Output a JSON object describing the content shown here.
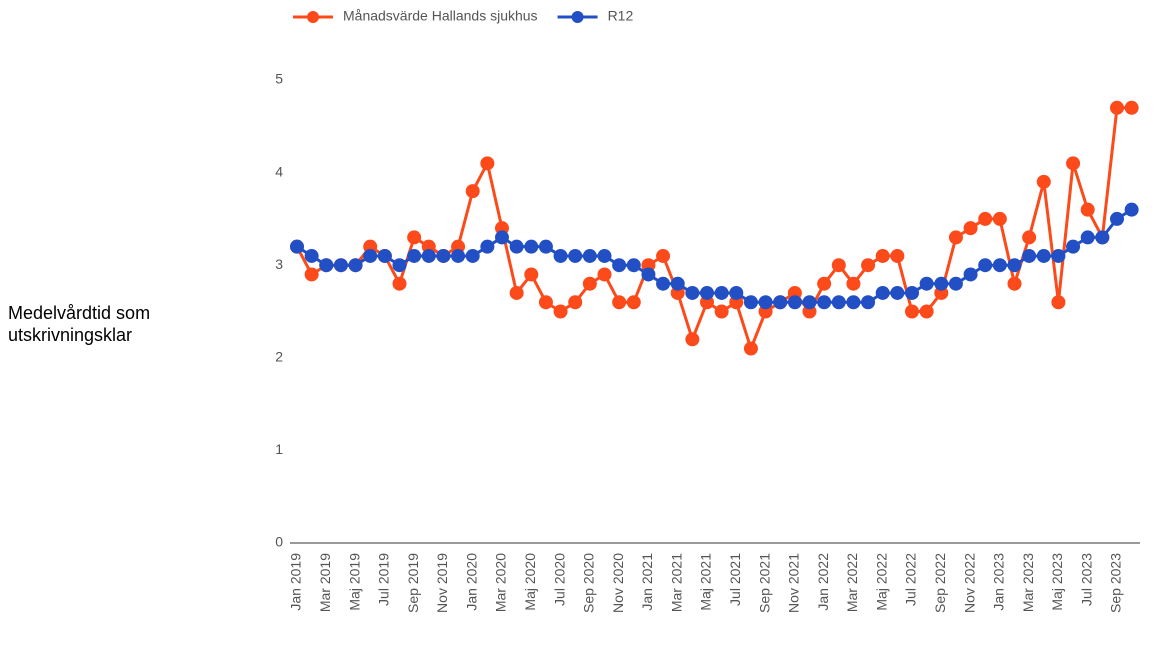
{
  "chart_data": {
    "type": "line",
    "ylabel": "Medelvårdtid som utskrivningsklar",
    "categories": [
      "Jan 2019",
      null,
      "Mar 2019",
      null,
      "Maj 2019",
      null,
      "Jul 2019",
      null,
      "Sep 2019",
      null,
      "Nov 2019",
      null,
      "Jan 2020",
      null,
      "Mar 2020",
      null,
      "Maj 2020",
      null,
      "Jul 2020",
      null,
      "Sep 2020",
      null,
      "Nov 2020",
      null,
      "Jan 2021",
      null,
      "Mar 2021",
      null,
      "Maj 2021",
      null,
      "Jul 2021",
      null,
      "Sep 2021",
      null,
      "Nov 2021",
      null,
      "Jan 2022",
      null,
      "Mar 2022",
      null,
      "Maj 2022",
      null,
      "Jul 2022",
      null,
      "Sep 2022",
      null,
      "Nov 2022",
      null,
      "Jan 2023",
      null,
      "Mar 2023",
      null,
      "Maj 2023",
      null,
      "Jul 2023",
      null,
      "Sep 2023",
      null
    ],
    "series": [
      {
        "name": "Månadsvärde Hallands sjukhus",
        "color": "#fc4a1a",
        "values": [
          3.2,
          2.9,
          3.0,
          3.0,
          3.0,
          3.2,
          3.1,
          2.8,
          3.3,
          3.2,
          3.1,
          3.2,
          3.8,
          4.1,
          3.4,
          2.7,
          2.9,
          2.6,
          2.5,
          2.6,
          2.8,
          2.9,
          2.6,
          2.6,
          3.0,
          3.1,
          2.7,
          2.2,
          2.6,
          2.5,
          2.6,
          2.1,
          2.5,
          2.6,
          2.7,
          2.5,
          2.8,
          3.0,
          2.8,
          3.0,
          3.1,
          3.1,
          2.5,
          2.5,
          2.7,
          3.3,
          3.4,
          3.5,
          3.5,
          2.8,
          3.3,
          3.9,
          2.6,
          4.1,
          3.6,
          3.3,
          4.7,
          4.7
        ]
      },
      {
        "name": "R12",
        "color": "#2250c4",
        "values": [
          3.2,
          3.1,
          3.0,
          3.0,
          3.0,
          3.1,
          3.1,
          3.0,
          3.1,
          3.1,
          3.1,
          3.1,
          3.1,
          3.2,
          3.3,
          3.2,
          3.2,
          3.2,
          3.1,
          3.1,
          3.1,
          3.1,
          3.0,
          3.0,
          2.9,
          2.8,
          2.8,
          2.7,
          2.7,
          2.7,
          2.7,
          2.6,
          2.6,
          2.6,
          2.6,
          2.6,
          2.6,
          2.6,
          2.6,
          2.6,
          2.7,
          2.7,
          2.7,
          2.8,
          2.8,
          2.8,
          2.9,
          3.0,
          3.0,
          3.0,
          3.1,
          3.1,
          3.1,
          3.2,
          3.3,
          3.3,
          3.5,
          3.6
        ]
      }
    ],
    "ylim": [
      0,
      5
    ],
    "yticks": [
      0,
      1,
      2,
      3,
      4,
      5
    ],
    "grid": false,
    "legend": "top"
  }
}
